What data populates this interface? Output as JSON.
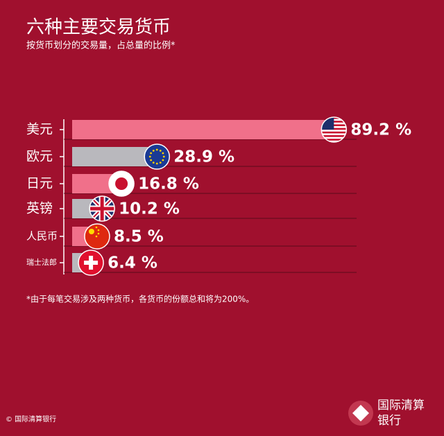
{
  "chart_data": {
    "type": "bar",
    "orientation": "horizontal",
    "title": "六种主要交易货币",
    "subtitle": "按货币划分的交易量，占总量的比例*",
    "categories": [
      "美元",
      "欧元",
      "日元",
      "英镑",
      "人民币",
      "瑞士法郎"
    ],
    "values": [
      89.2,
      28.9,
      16.8,
      10.2,
      8.5,
      6.4
    ],
    "value_labels": [
      "89.2 %",
      "28.9 %",
      "16.8 %",
      "10.2 %",
      "8.5 %",
      "6.4 %"
    ],
    "colors": [
      "#f0708a",
      "#b9b8bd",
      "#f0708a",
      "#b9b8bd",
      "#f0708a",
      "#b9b8bd"
    ],
    "xlim": [
      0,
      100
    ],
    "footnote": "*由于每笔交易涉及两种货币，各货币的份额总和将为200%。",
    "source": "© 国际清算银行",
    "logo": [
      "国际清算",
      "银行"
    ]
  }
}
